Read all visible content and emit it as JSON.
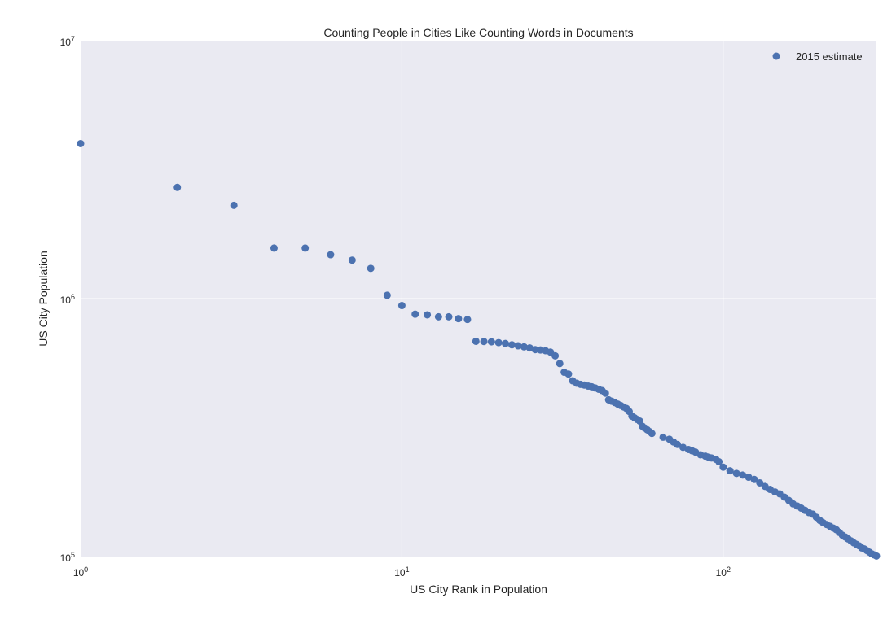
{
  "chart_data": {
    "type": "scatter",
    "title": "Counting People in Cities Like Counting Words in Documents",
    "xlabel": "US City Rank in Population",
    "ylabel": "US City Population",
    "xscale": "log",
    "yscale": "log",
    "xlim": [
      1,
      300
    ],
    "ylim": [
      100000,
      10000000
    ],
    "x_ticks": [
      {
        "value": 1,
        "base": "10",
        "exp": "0"
      },
      {
        "value": 10,
        "base": "10",
        "exp": "1"
      },
      {
        "value": 100,
        "base": "10",
        "exp": "2"
      }
    ],
    "y_ticks": [
      {
        "value": 100000,
        "base": "10",
        "exp": "5"
      },
      {
        "value": 1000000,
        "base": "10",
        "exp": "6"
      },
      {
        "value": 10000000,
        "base": "10",
        "exp": "7"
      }
    ],
    "grid": true,
    "legend": {
      "position": "top-right",
      "entries": [
        "2015 estimate"
      ]
    },
    "series": [
      {
        "name": "2015 estimate",
        "color": "#4c72b0",
        "points": [
          [
            1,
            3990000
          ],
          [
            2,
            2700000
          ],
          [
            3,
            2300000
          ],
          [
            4,
            1570000
          ],
          [
            5,
            1570000
          ],
          [
            6,
            1480000
          ],
          [
            7,
            1410000
          ],
          [
            8,
            1310000
          ],
          [
            9,
            1030000
          ],
          [
            10,
            940000
          ],
          [
            11,
            870000
          ],
          [
            12,
            865000
          ],
          [
            13,
            850000
          ],
          [
            14,
            850000
          ],
          [
            15,
            836000
          ],
          [
            16,
            830000
          ],
          [
            17,
            683000
          ],
          [
            18,
            682000
          ],
          [
            19,
            680000
          ],
          [
            20,
            675000
          ],
          [
            21,
            670000
          ],
          [
            22,
            662000
          ],
          [
            23,
            656000
          ],
          [
            24,
            650000
          ],
          [
            25,
            644000
          ],
          [
            26,
            634000
          ],
          [
            27,
            632000
          ],
          [
            28,
            628000
          ],
          [
            29,
            620000
          ],
          [
            30,
            600000
          ],
          [
            31,
            560000
          ],
          [
            32,
            518000
          ],
          [
            33,
            510000
          ],
          [
            34,
            480000
          ],
          [
            35,
            470000
          ],
          [
            36,
            465000
          ],
          [
            37,
            462000
          ],
          [
            38,
            458000
          ],
          [
            39,
            455000
          ],
          [
            40,
            450000
          ],
          [
            41,
            445000
          ],
          [
            42,
            440000
          ],
          [
            43,
            430000
          ],
          [
            44,
            405000
          ],
          [
            45,
            400000
          ],
          [
            46,
            395000
          ],
          [
            47,
            390000
          ],
          [
            48,
            385000
          ],
          [
            49,
            380000
          ],
          [
            50,
            375000
          ],
          [
            51,
            365000
          ],
          [
            52,
            350000
          ],
          [
            53,
            345000
          ],
          [
            54,
            340000
          ],
          [
            55,
            335000
          ],
          [
            56,
            320000
          ],
          [
            57,
            315000
          ],
          [
            58,
            310000
          ],
          [
            59,
            305000
          ],
          [
            60,
            300000
          ],
          [
            65,
            290000
          ],
          [
            68,
            285000
          ],
          [
            70,
            278000
          ],
          [
            72,
            272000
          ],
          [
            75,
            265000
          ],
          [
            78,
            260000
          ],
          [
            80,
            257000
          ],
          [
            82,
            254000
          ],
          [
            85,
            248000
          ],
          [
            88,
            245000
          ],
          [
            90,
            243000
          ],
          [
            92,
            241000
          ],
          [
            95,
            238000
          ],
          [
            97,
            233000
          ],
          [
            100,
            222000
          ],
          [
            105,
            215000
          ],
          [
            110,
            210000
          ],
          [
            115,
            207000
          ],
          [
            120,
            203000
          ],
          [
            125,
            199000
          ],
          [
            130,
            193000
          ],
          [
            135,
            187000
          ],
          [
            140,
            182000
          ],
          [
            145,
            178000
          ],
          [
            150,
            175000
          ],
          [
            155,
            170000
          ],
          [
            160,
            165000
          ],
          [
            165,
            160000
          ],
          [
            170,
            157000
          ],
          [
            175,
            154000
          ],
          [
            180,
            151000
          ],
          [
            185,
            148000
          ],
          [
            190,
            146000
          ],
          [
            195,
            142000
          ],
          [
            200,
            138000
          ],
          [
            205,
            135000
          ],
          [
            210,
            133000
          ],
          [
            215,
            131000
          ],
          [
            220,
            129000
          ],
          [
            225,
            127000
          ],
          [
            230,
            124000
          ],
          [
            235,
            121000
          ],
          [
            240,
            119000
          ],
          [
            245,
            117000
          ],
          [
            250,
            115000
          ],
          [
            255,
            113000
          ],
          [
            260,
            111500
          ],
          [
            265,
            110000
          ],
          [
            270,
            108000
          ],
          [
            275,
            107000
          ],
          [
            280,
            105500
          ],
          [
            285,
            104000
          ],
          [
            290,
            102500
          ],
          [
            295,
            101500
          ],
          [
            300,
            100500
          ]
        ]
      }
    ]
  }
}
